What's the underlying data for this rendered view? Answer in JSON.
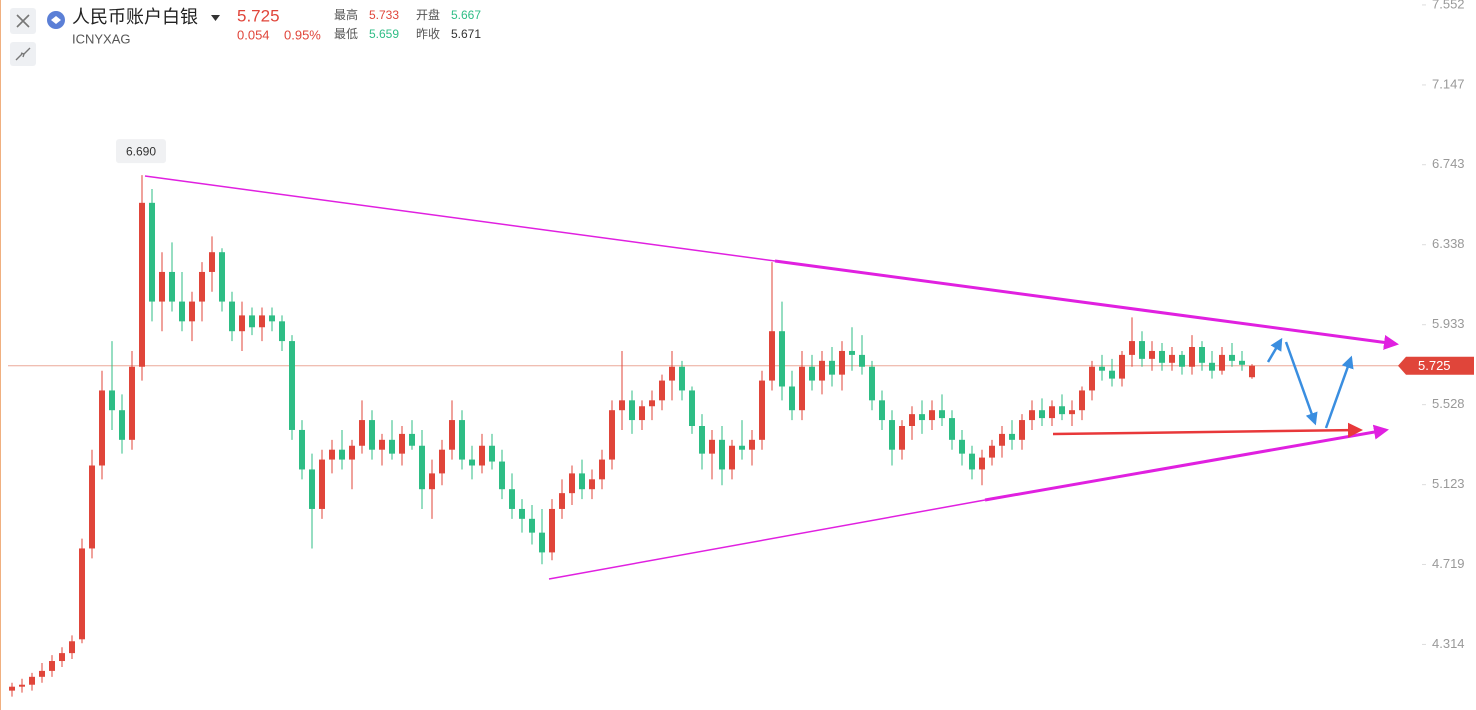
{
  "chart_data": {
    "type": "candlestick",
    "title": "人民币账户白银",
    "symbol": "ICNYXAG",
    "last_price": 5.725,
    "change": 0.054,
    "change_pct": {
      "value": 0.95,
      "label": "0.95%"
    },
    "stats": [
      {
        "name": "最高",
        "value": 5.733,
        "color": "#e0453a"
      },
      {
        "name": "开盘",
        "value": 5.667,
        "color": "#2ebd85"
      },
      {
        "name": "最低",
        "value": 5.659,
        "color": "#2ebd85"
      },
      {
        "name": "昨收",
        "value": 5.671,
        "color": "#333333"
      }
    ],
    "high_label": {
      "value": 6.69,
      "label": "6.690",
      "index": 13
    },
    "up_color": "#e0453a",
    "down_color": "#2ebd85",
    "ylim": [
      3.982,
      7.577
    ],
    "yticks": [
      7.552,
      7.147,
      6.743,
      6.338,
      5.933,
      5.528,
      5.123,
      4.719,
      4.314
    ],
    "candles": [
      [
        4.08,
        4.12,
        4.05,
        4.1
      ],
      [
        4.1,
        4.14,
        4.07,
        4.11
      ],
      [
        4.11,
        4.17,
        4.08,
        4.15
      ],
      [
        4.15,
        4.22,
        4.12,
        4.18
      ],
      [
        4.18,
        4.26,
        4.15,
        4.23
      ],
      [
        4.23,
        4.3,
        4.2,
        4.27
      ],
      [
        4.27,
        4.36,
        4.24,
        4.33
      ],
      [
        4.34,
        4.85,
        4.32,
        4.8
      ],
      [
        4.8,
        5.3,
        4.75,
        5.22
      ],
      [
        5.22,
        5.7,
        5.15,
        5.6
      ],
      [
        5.6,
        5.85,
        5.4,
        5.5
      ],
      [
        5.5,
        5.58,
        5.28,
        5.35
      ],
      [
        5.35,
        5.8,
        5.3,
        5.72
      ],
      [
        5.72,
        6.69,
        5.65,
        6.55
      ],
      [
        6.55,
        6.62,
        5.95,
        6.05
      ],
      [
        6.05,
        6.3,
        5.9,
        6.2
      ],
      [
        6.2,
        6.35,
        6.0,
        6.05
      ],
      [
        6.05,
        6.2,
        5.9,
        5.95
      ],
      [
        5.95,
        6.1,
        5.85,
        6.05
      ],
      [
        6.05,
        6.25,
        5.95,
        6.2
      ],
      [
        6.2,
        6.38,
        6.1,
        6.3
      ],
      [
        6.3,
        6.32,
        6.0,
        6.05
      ],
      [
        6.05,
        6.1,
        5.85,
        5.9
      ],
      [
        5.9,
        6.05,
        5.8,
        5.98
      ],
      [
        5.98,
        6.02,
        5.88,
        5.92
      ],
      [
        5.92,
        6.02,
        5.85,
        5.98
      ],
      [
        5.98,
        6.02,
        5.9,
        5.95
      ],
      [
        5.95,
        5.98,
        5.8,
        5.85
      ],
      [
        5.85,
        5.88,
        5.35,
        5.4
      ],
      [
        5.4,
        5.45,
        5.15,
        5.2
      ],
      [
        5.2,
        5.28,
        4.8,
        5.0
      ],
      [
        5.0,
        5.3,
        4.95,
        5.25
      ],
      [
        5.25,
        5.35,
        5.18,
        5.3
      ],
      [
        5.3,
        5.4,
        5.2,
        5.25
      ],
      [
        5.25,
        5.35,
        5.1,
        5.32
      ],
      [
        5.32,
        5.55,
        5.28,
        5.45
      ],
      [
        5.45,
        5.5,
        5.25,
        5.3
      ],
      [
        5.3,
        5.38,
        5.22,
        5.35
      ],
      [
        5.35,
        5.45,
        5.25,
        5.28
      ],
      [
        5.28,
        5.42,
        5.22,
        5.38
      ],
      [
        5.38,
        5.45,
        5.3,
        5.32
      ],
      [
        5.32,
        5.4,
        5.0,
        5.1
      ],
      [
        5.1,
        5.25,
        4.95,
        5.18
      ],
      [
        5.18,
        5.35,
        5.12,
        5.3
      ],
      [
        5.3,
        5.55,
        5.25,
        5.45
      ],
      [
        5.45,
        5.5,
        5.2,
        5.25
      ],
      [
        5.25,
        5.32,
        5.15,
        5.22
      ],
      [
        5.22,
        5.38,
        5.18,
        5.32
      ],
      [
        5.32,
        5.38,
        5.2,
        5.24
      ],
      [
        5.24,
        5.3,
        5.05,
        5.1
      ],
      [
        5.1,
        5.18,
        4.95,
        5.0
      ],
      [
        5.0,
        5.05,
        4.88,
        4.95
      ],
      [
        4.95,
        5.02,
        4.82,
        4.88
      ],
      [
        4.88,
        5.0,
        4.72,
        4.78
      ],
      [
        4.78,
        5.05,
        4.74,
        5.0
      ],
      [
        5.0,
        5.15,
        4.95,
        5.08
      ],
      [
        5.08,
        5.22,
        5.02,
        5.18
      ],
      [
        5.18,
        5.25,
        5.05,
        5.1
      ],
      [
        5.1,
        5.2,
        5.05,
        5.15
      ],
      [
        5.15,
        5.3,
        5.1,
        5.25
      ],
      [
        5.25,
        5.55,
        5.2,
        5.5
      ],
      [
        5.5,
        5.8,
        5.4,
        5.55
      ],
      [
        5.55,
        5.6,
        5.38,
        5.45
      ],
      [
        5.45,
        5.55,
        5.4,
        5.52
      ],
      [
        5.52,
        5.6,
        5.45,
        5.55
      ],
      [
        5.55,
        5.68,
        5.5,
        5.65
      ],
      [
        5.65,
        5.8,
        5.55,
        5.72
      ],
      [
        5.72,
        5.75,
        5.55,
        5.6
      ],
      [
        5.6,
        5.62,
        5.38,
        5.42
      ],
      [
        5.42,
        5.48,
        5.2,
        5.28
      ],
      [
        5.28,
        5.4,
        5.15,
        5.35
      ],
      [
        5.35,
        5.42,
        5.12,
        5.2
      ],
      [
        5.2,
        5.35,
        5.15,
        5.32
      ],
      [
        5.32,
        5.45,
        5.25,
        5.3
      ],
      [
        5.3,
        5.4,
        5.22,
        5.35
      ],
      [
        5.35,
        5.7,
        5.3,
        5.65
      ],
      [
        5.65,
        6.25,
        5.6,
        5.9
      ],
      [
        5.9,
        6.05,
        5.55,
        5.62
      ],
      [
        5.62,
        5.7,
        5.45,
        5.5
      ],
      [
        5.5,
        5.8,
        5.45,
        5.72
      ],
      [
        5.72,
        5.78,
        5.6,
        5.65
      ],
      [
        5.65,
        5.8,
        5.58,
        5.75
      ],
      [
        5.75,
        5.82,
        5.62,
        5.68
      ],
      [
        5.68,
        5.85,
        5.6,
        5.8
      ],
      [
        5.8,
        5.92,
        5.7,
        5.78
      ],
      [
        5.78,
        5.88,
        5.68,
        5.72
      ],
      [
        5.72,
        5.75,
        5.5,
        5.55
      ],
      [
        5.55,
        5.6,
        5.4,
        5.45
      ],
      [
        5.45,
        5.5,
        5.22,
        5.3
      ],
      [
        5.3,
        5.45,
        5.25,
        5.42
      ],
      [
        5.42,
        5.52,
        5.35,
        5.48
      ],
      [
        5.48,
        5.55,
        5.38,
        5.45
      ],
      [
        5.45,
        5.55,
        5.4,
        5.5
      ],
      [
        5.5,
        5.58,
        5.42,
        5.46
      ],
      [
        5.46,
        5.5,
        5.3,
        5.35
      ],
      [
        5.35,
        5.4,
        5.22,
        5.28
      ],
      [
        5.28,
        5.32,
        5.15,
        5.2
      ],
      [
        5.2,
        5.3,
        5.12,
        5.26
      ],
      [
        5.26,
        5.35,
        5.22,
        5.32
      ],
      [
        5.32,
        5.42,
        5.26,
        5.38
      ],
      [
        5.38,
        5.45,
        5.3,
        5.35
      ],
      [
        5.35,
        5.48,
        5.3,
        5.45
      ],
      [
        5.45,
        5.55,
        5.4,
        5.5
      ],
      [
        5.5,
        5.56,
        5.42,
        5.46
      ],
      [
        5.46,
        5.55,
        5.42,
        5.52
      ],
      [
        5.52,
        5.58,
        5.45,
        5.48
      ],
      [
        5.48,
        5.55,
        5.42,
        5.5
      ],
      [
        5.5,
        5.62,
        5.45,
        5.6
      ],
      [
        5.6,
        5.75,
        5.55,
        5.72
      ],
      [
        5.72,
        5.78,
        5.65,
        5.7
      ],
      [
        5.7,
        5.76,
        5.62,
        5.66
      ],
      [
        5.66,
        5.8,
        5.62,
        5.78
      ],
      [
        5.78,
        5.97,
        5.72,
        5.85
      ],
      [
        5.85,
        5.9,
        5.72,
        5.76
      ],
      [
        5.76,
        5.85,
        5.7,
        5.8
      ],
      [
        5.8,
        5.84,
        5.7,
        5.74
      ],
      [
        5.74,
        5.82,
        5.7,
        5.78
      ],
      [
        5.78,
        5.8,
        5.68,
        5.72
      ],
      [
        5.72,
        5.88,
        5.68,
        5.82
      ],
      [
        5.82,
        5.85,
        5.7,
        5.74
      ],
      [
        5.74,
        5.8,
        5.66,
        5.7
      ],
      [
        5.7,
        5.82,
        5.68,
        5.78
      ],
      [
        5.78,
        5.84,
        5.72,
        5.75
      ],
      [
        5.75,
        5.8,
        5.7,
        5.73
      ],
      [
        5.667,
        5.733,
        5.659,
        5.725
      ]
    ]
  }
}
